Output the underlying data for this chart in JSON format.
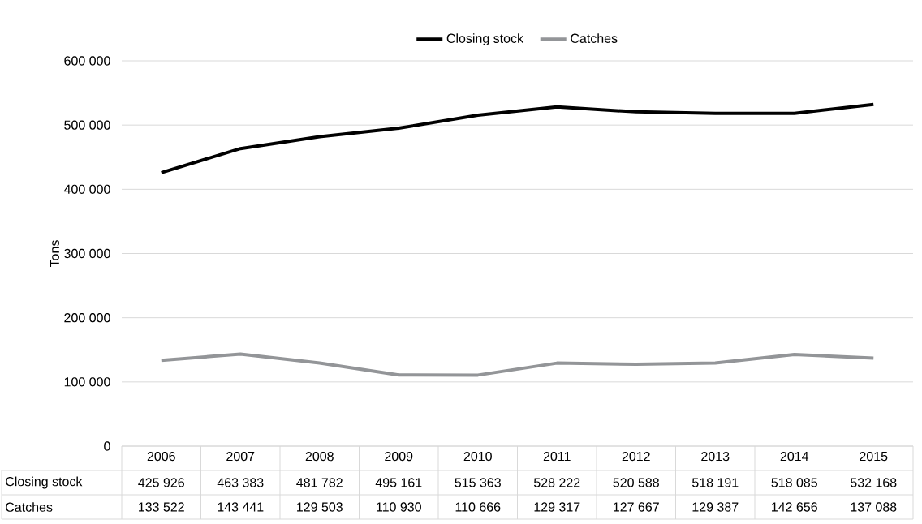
{
  "chart_data": {
    "type": "line",
    "ylabel": "Tons",
    "categories": [
      "2006",
      "2007",
      "2008",
      "2009",
      "2010",
      "2011",
      "2012",
      "2013",
      "2014",
      "2015"
    ],
    "series": [
      {
        "name": "Closing stock",
        "color": "#000000",
        "values": [
          425926,
          463383,
          481782,
          495161,
          515363,
          528222,
          520588,
          518191,
          518085,
          532168
        ],
        "value_labels": [
          "425 926",
          "463 383",
          "481 782",
          "495 161",
          "515 363",
          "528 222",
          "520 588",
          "518 191",
          "518 085",
          "532 168"
        ]
      },
      {
        "name": "Catches",
        "color": "#939598",
        "values": [
          133522,
          143441,
          129503,
          110930,
          110666,
          129317,
          127667,
          129387,
          142656,
          137088
        ],
        "value_labels": [
          "133 522",
          "143 441",
          "129 503",
          "110 930",
          "110 666",
          "129 317",
          "127 667",
          "129 387",
          "142 656",
          "137 088"
        ]
      }
    ],
    "ylim": [
      0,
      600000
    ],
    "yticks": [
      0,
      {
        "value": 100000,
        "label": "100 000"
      },
      {
        "value": 200000,
        "label": "200 000"
      },
      {
        "value": 300000,
        "label": "300 000"
      },
      {
        "value": 400000,
        "label": "400 000"
      },
      {
        "value": 500000,
        "label": "500 000"
      },
      {
        "value": 600000,
        "label": "600 000"
      }
    ],
    "grid": "y",
    "legend": "top",
    "marker": "none"
  }
}
